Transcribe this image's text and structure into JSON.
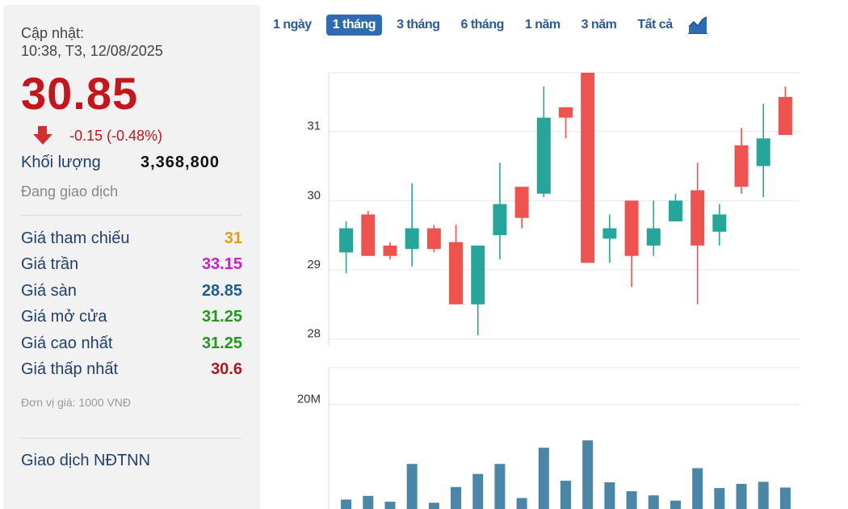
{
  "panel": {
    "update_label": "Cập nhật:",
    "update_time": "10:38, T3, 12/08/2025",
    "price": "30.85",
    "change": "-0.15 (-0.48%)",
    "volume_label": "Khối lượng",
    "volume_value": "3,368,800",
    "status": "Đang giao dịch",
    "stats": [
      {
        "label": "Giá tham chiếu",
        "value": "31",
        "color": "#e0a10d"
      },
      {
        "label": "Giá trần",
        "value": "33.15",
        "color": "#c81fc8"
      },
      {
        "label": "Giá sàn",
        "value": "28.85",
        "color": "#1e5e8c"
      },
      {
        "label": "Giá mở cửa",
        "value": "31.25",
        "color": "#1e9a1e"
      },
      {
        "label": "Giá cao nhất",
        "value": "31.25",
        "color": "#1e9a1e"
      },
      {
        "label": "Giá thấp nhất",
        "value": "30.6",
        "color": "#b0181e"
      }
    ],
    "unit": "Đơn vị giá: 1000 VNĐ",
    "foreign_label": "Giao dịch NĐTNN"
  },
  "tabs": [
    {
      "label": "1 ngày",
      "active": false
    },
    {
      "label": "1 tháng",
      "active": true
    },
    {
      "label": "3 tháng",
      "active": false
    },
    {
      "label": "6 tháng",
      "active": false
    },
    {
      "label": "1 năm",
      "active": false
    },
    {
      "label": "3 năm",
      "active": false
    },
    {
      "label": "Tất cả",
      "active": false
    }
  ],
  "colors": {
    "up": "#26a69a",
    "down": "#ef5350",
    "volume": "#4a86a8",
    "grid": "#e6e6e6"
  },
  "chart_data": [
    {
      "type": "candlestick",
      "y_ticks": [
        "28",
        "29",
        "30",
        "31"
      ],
      "ylim": [
        27.9,
        31.85
      ],
      "candles": [
        {
          "o": 29.25,
          "h": 29.7,
          "l": 28.95,
          "c": 29.6
        },
        {
          "o": 29.8,
          "h": 29.85,
          "l": 29.2,
          "c": 29.2
        },
        {
          "o": 29.35,
          "h": 29.4,
          "l": 29.15,
          "c": 29.2
        },
        {
          "o": 29.3,
          "h": 30.25,
          "l": 29.05,
          "c": 29.6
        },
        {
          "o": 29.6,
          "h": 29.65,
          "l": 29.25,
          "c": 29.3
        },
        {
          "o": 29.4,
          "h": 29.65,
          "l": 28.5,
          "c": 28.5
        },
        {
          "o": 28.5,
          "h": 29.35,
          "l": 28.05,
          "c": 29.35
        },
        {
          "o": 29.5,
          "h": 30.55,
          "l": 29.15,
          "c": 29.95
        },
        {
          "o": 30.2,
          "h": 30.2,
          "l": 29.6,
          "c": 29.75
        },
        {
          "o": 30.1,
          "h": 31.65,
          "l": 30.05,
          "c": 31.2
        },
        {
          "o": 31.35,
          "h": 31.35,
          "l": 30.9,
          "c": 31.2
        },
        {
          "o": 31.85,
          "h": 31.85,
          "l": 29.1,
          "c": 29.1
        },
        {
          "o": 29.45,
          "h": 29.8,
          "l": 29.1,
          "c": 29.6
        },
        {
          "o": 30.0,
          "h": 30.0,
          "l": 28.75,
          "c": 29.2
        },
        {
          "o": 29.35,
          "h": 30.0,
          "l": 29.2,
          "c": 29.6
        },
        {
          "o": 29.7,
          "h": 30.1,
          "l": 29.7,
          "c": 30.0
        },
        {
          "o": 30.15,
          "h": 30.55,
          "l": 28.5,
          "c": 29.35
        },
        {
          "o": 29.55,
          "h": 29.95,
          "l": 29.35,
          "c": 29.8
        },
        {
          "o": 30.8,
          "h": 31.05,
          "l": 30.1,
          "c": 30.2
        },
        {
          "o": 30.5,
          "h": 31.4,
          "l": 30.05,
          "c": 30.9
        },
        {
          "o": 31.5,
          "h": 31.65,
          "l": 30.95,
          "c": 30.95
        }
      ]
    },
    {
      "type": "bar",
      "series": [
        {
          "values": [
            1.8,
            2.5,
            1.4,
            8.6,
            1.2,
            4.2,
            6.7,
            8.6,
            2.1,
            11.7,
            5.4,
            13.1,
            5.1,
            3.4,
            2.6,
            1.6,
            7.8,
            4.0,
            4.8,
            5.2,
            4.1
          ]
        }
      ],
      "y_ticks": [
        "20M"
      ],
      "ylim": [
        0,
        27
      ]
    }
  ]
}
